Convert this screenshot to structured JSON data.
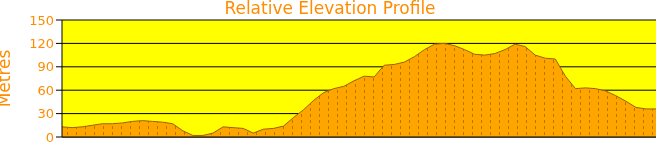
{
  "chart_data": {
    "type": "area",
    "title": "Relative Elevation Profile",
    "ylabel": "Metres",
    "categories": [
      null,
      null,
      null,
      null,
      null,
      null,
      null,
      null,
      null,
      null,
      null,
      null,
      null,
      null,
      null,
      null,
      null,
      null,
      null,
      null,
      null,
      null,
      null,
      null,
      null,
      null,
      null,
      null,
      null,
      null,
      null,
      null,
      null,
      null,
      null,
      null,
      null,
      null,
      null,
      null,
      null,
      null,
      null,
      null,
      null,
      null,
      null,
      null,
      null,
      null,
      null,
      null,
      null,
      null,
      null,
      null,
      null,
      null,
      null,
      null
    ],
    "values": [
      13,
      12,
      13,
      15,
      17,
      17,
      18,
      20,
      21,
      20,
      19,
      17,
      8,
      2,
      2,
      5,
      13,
      12,
      11,
      5,
      10,
      11,
      14,
      25,
      35,
      47,
      57,
      62,
      65,
      72,
      78,
      77,
      92,
      93,
      96,
      103,
      112,
      119,
      120,
      117,
      112,
      106,
      105,
      107,
      112,
      119,
      116,
      105,
      101,
      100,
      78,
      62,
      63,
      62,
      59,
      53,
      46,
      38,
      36,
      36
    ],
    "color": "#ffa500",
    "ylim": [
      0,
      150
    ],
    "yticks": [
      0,
      30,
      60,
      90,
      120,
      150
    ],
    "grid": true,
    "tick_labels": "y"
  }
}
